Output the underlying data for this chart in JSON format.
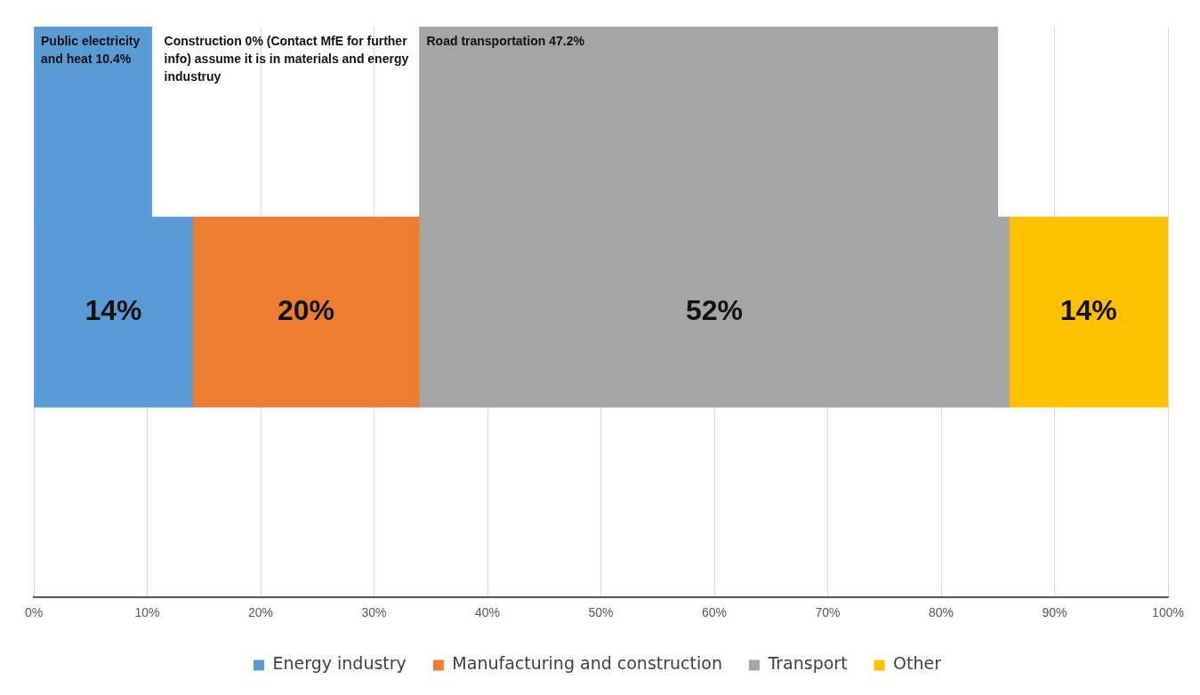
{
  "chart_data": {
    "type": "bar",
    "orientation": "horizontal",
    "categories": [
      null,
      null,
      null
    ],
    "series": [
      {
        "name": "Energy industry",
        "color": "#5b9bd5",
        "values": [
          10.4,
          14,
          null
        ],
        "base": [
          0,
          0,
          null
        ],
        "value_labels": [
          null,
          "14%",
          null
        ]
      },
      {
        "name": "Manufacturing and construction",
        "color": "#ed7d31",
        "values": [
          null,
          20,
          null
        ],
        "base": [
          null,
          14,
          null
        ],
        "value_labels": [
          null,
          "20%",
          null
        ]
      },
      {
        "name": "Transport",
        "color": "#a5a5a5",
        "values": [
          51,
          52,
          null
        ],
        "base": [
          34,
          34,
          null
        ],
        "value_labels": [
          null,
          "52%",
          null
        ]
      },
      {
        "name": "Other",
        "color": "#ffc000",
        "values": [
          null,
          14,
          null
        ],
        "base": [
          null,
          86,
          null
        ],
        "value_labels": [
          null,
          "14%",
          null
        ]
      }
    ],
    "xlim": [
      0,
      100
    ],
    "xticks": [
      {
        "value": 0,
        "label": "0%"
      },
      {
        "value": 10,
        "label": "10%"
      },
      {
        "value": 20,
        "label": "20%"
      },
      {
        "value": 30,
        "label": "30%"
      },
      {
        "value": 40,
        "label": "40%"
      },
      {
        "value": 50,
        "label": "50%"
      },
      {
        "value": 60,
        "label": "60%"
      },
      {
        "value": 70,
        "label": "70%"
      },
      {
        "value": 80,
        "label": "80%"
      },
      {
        "value": 90,
        "label": "90%"
      },
      {
        "value": 100,
        "label": "100%"
      }
    ],
    "annotations": [
      {
        "text": "Public electricity and heat 10.4%",
        "x": 0
      },
      "Construction 0% (Contact MfE for further info) assume it is in materials and energy industruy",
      {
        "text": "Road transportation 47.2%",
        "x": 34
      }
    ],
    "grid": "x",
    "legend": "bottom",
    "tick_labels": "x"
  }
}
